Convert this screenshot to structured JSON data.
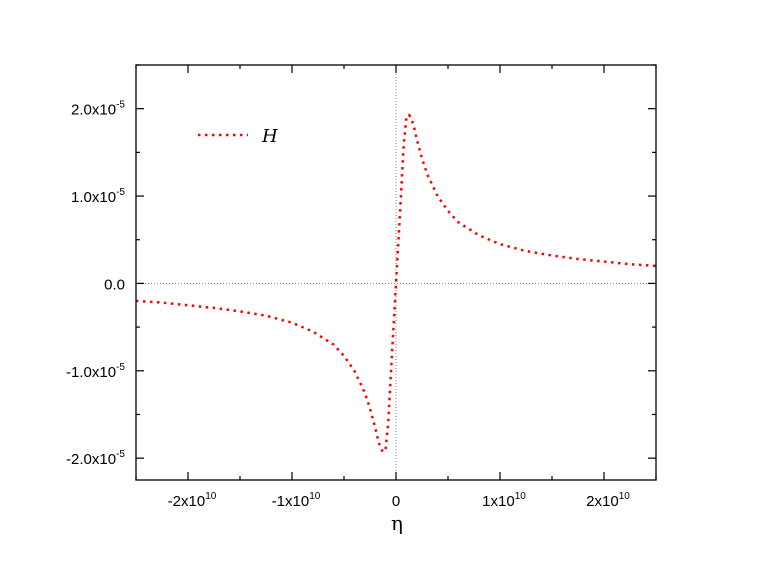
{
  "chart_data": {
    "type": "line",
    "title": "",
    "xlabel": "η",
    "ylabel": "",
    "xlim": [
      -25000000000.0,
      25000000000.0
    ],
    "ylim": [
      -2.25e-05,
      2.5e-05
    ],
    "x_ticks": [
      {
        "value": -20000000000.0,
        "label": "-2x10",
        "exp": "10"
      },
      {
        "value": -10000000000.0,
        "label": "-1x10",
        "exp": "10"
      },
      {
        "value": 0,
        "label": "0",
        "exp": ""
      },
      {
        "value": 10000000000.0,
        "label": "1x10",
        "exp": "10"
      },
      {
        "value": 20000000000.0,
        "label": "2x10",
        "exp": "10"
      }
    ],
    "y_ticks": [
      {
        "value": 2e-05,
        "label": "2.0x10",
        "exp": "-5"
      },
      {
        "value": 1e-05,
        "label": "1.0x10",
        "exp": "-5"
      },
      {
        "value": 0,
        "label": "0.0",
        "exp": ""
      },
      {
        "value": -1e-05,
        "label": "-1.0x10",
        "exp": "-5"
      },
      {
        "value": -2e-05,
        "label": "-2.0x10",
        "exp": "-5"
      }
    ],
    "zero_lines": true,
    "legend_placement": "top-left",
    "series": [
      {
        "name": "H",
        "color": "#ff0000",
        "style": "dotted",
        "x": [
          -25000000000.0,
          -22500000000.0,
          -20000000000.0,
          -17500000000.0,
          -15000000000.0,
          -12500000000.0,
          -10000000000.0,
          -8000000000.0,
          -6000000000.0,
          -5000000000.0,
          -4000000000.0,
          -3000000000.0,
          -2500000000.0,
          -2000000000.0,
          -1750000000.0,
          -1500000000.0,
          -1250000000.0,
          -1000000000.0,
          -750000000.0,
          -500000000.0,
          -250000000.0,
          0,
          250000000.0,
          500000000.0,
          750000000.0,
          1000000000.0,
          1250000000.0,
          1500000000.0,
          1750000000.0,
          2000000000.0,
          2500000000.0,
          3000000000.0,
          4000000000.0,
          5000000000.0,
          6000000000.0,
          8000000000.0,
          10000000000.0,
          12500000000.0,
          15000000000.0,
          17500000000.0,
          20000000000.0,
          22500000000.0,
          25000000000.0
        ],
        "y": [
          -2e-06,
          -2.2e-06,
          -2.5e-06,
          -2.8e-06,
          -3.2e-06,
          -3.7e-06,
          -4.5e-06,
          -5.5e-06,
          -7e-06,
          -8.3e-06,
          -1e-05,
          -1.25e-05,
          -1.43e-05,
          -1.65e-05,
          -1.78e-05,
          -1.88e-05,
          -1.93e-05,
          -1.9e-05,
          -1.6e-05,
          -1.05e-05,
          -5.2e-06,
          0,
          5.2e-06,
          1.05e-05,
          1.6e-05,
          1.9e-05,
          1.93e-05,
          1.88e-05,
          1.78e-05,
          1.65e-05,
          1.43e-05,
          1.25e-05,
          1e-05,
          8.3e-06,
          7e-06,
          5.5e-06,
          4.5e-06,
          3.7e-06,
          3.2e-06,
          2.8e-06,
          2.5e-06,
          2.2e-06,
          2e-06
        ]
      }
    ]
  }
}
